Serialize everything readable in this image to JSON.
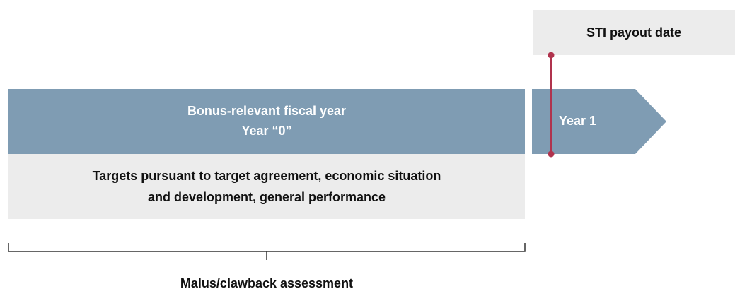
{
  "payout": {
    "label": "STI payout date"
  },
  "fiscal_year": {
    "line1": "Bonus-relevant fiscal year",
    "line2": "Year “0”"
  },
  "year1": {
    "label": "Year 1"
  },
  "targets": {
    "line1": "Targets pursuant to target agreement, economic situation",
    "line2": "and development, general performance"
  },
  "assessment": {
    "label": "Malus/clawback assessment"
  }
}
